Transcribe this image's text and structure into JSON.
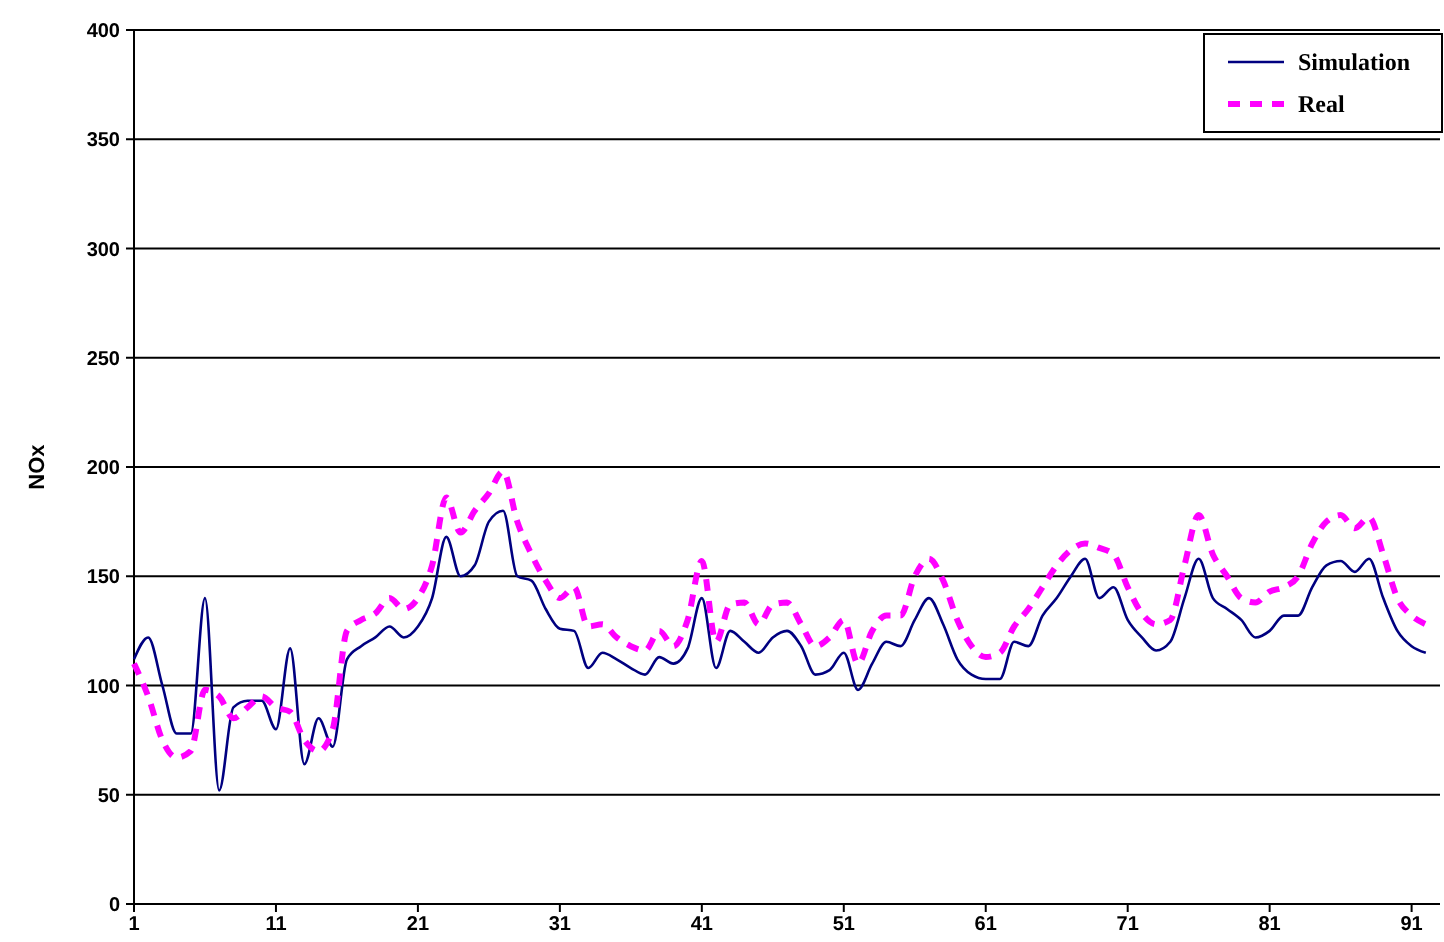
{
  "chart_data": {
    "type": "line",
    "ylabel": "NOx",
    "x": [
      1,
      2,
      3,
      4,
      5,
      6,
      7,
      8,
      9,
      10,
      11,
      12,
      13,
      14,
      15,
      16,
      17,
      18,
      19,
      20,
      21,
      22,
      23,
      24,
      25,
      26,
      27,
      28,
      29,
      30,
      31,
      32,
      33,
      34,
      35,
      36,
      37,
      38,
      39,
      40,
      41,
      42,
      43,
      44,
      45,
      46,
      47,
      48,
      49,
      50,
      51,
      52,
      53,
      54,
      55,
      56,
      57,
      58,
      59,
      60,
      61,
      62,
      63,
      64,
      65,
      66,
      67,
      68,
      69,
      70,
      71,
      72,
      73,
      74,
      75,
      76,
      77,
      78,
      79,
      80,
      81,
      82,
      83,
      84,
      85,
      86,
      87,
      88,
      89,
      90,
      91,
      92
    ],
    "series": [
      {
        "name": "Simulation",
        "color": "#000080",
        "line_style": "solid",
        "values": [
          112,
          122,
          100,
          78,
          78,
          140,
          52,
          90,
          93,
          93,
          80,
          117,
          64,
          85,
          72,
          112,
          118,
          122,
          127,
          122,
          127,
          140,
          168,
          150,
          155,
          175,
          180,
          150,
          148,
          135,
          126,
          125,
          108,
          115,
          112,
          108,
          105,
          113,
          110,
          117,
          140,
          108,
          125,
          120,
          115,
          122,
          125,
          118,
          105,
          107,
          115,
          98,
          110,
          120,
          118,
          130,
          140,
          128,
          112,
          105,
          103,
          103,
          120,
          118,
          132,
          140,
          150,
          158,
          140,
          145,
          130,
          122,
          116,
          120,
          140,
          158,
          140,
          135,
          130,
          122,
          125,
          132,
          132,
          145,
          155,
          157,
          152,
          158,
          140,
          125,
          118,
          115
        ]
      },
      {
        "name": "Real",
        "color": "#ff00ff",
        "line_style": "dashed",
        "values": [
          110,
          95,
          75,
          67,
          70,
          98,
          95,
          85,
          90,
          95,
          90,
          88,
          75,
          70,
          80,
          125,
          130,
          133,
          140,
          135,
          140,
          155,
          186,
          170,
          180,
          188,
          198,
          175,
          160,
          148,
          140,
          145,
          127,
          128,
          122,
          118,
          116,
          125,
          118,
          130,
          157,
          120,
          137,
          138,
          128,
          137,
          138,
          128,
          118,
          122,
          130,
          110,
          125,
          132,
          132,
          150,
          158,
          148,
          130,
          118,
          113,
          115,
          127,
          135,
          145,
          155,
          162,
          165,
          163,
          160,
          145,
          133,
          128,
          130,
          155,
          178,
          160,
          150,
          140,
          138,
          143,
          145,
          150,
          165,
          175,
          178,
          172,
          177,
          160,
          140,
          132,
          128
        ]
      }
    ],
    "xlim": [
      1,
      93
    ],
    "xticks": [
      1,
      11,
      21,
      31,
      41,
      51,
      61,
      71,
      81,
      91
    ],
    "ylim": [
      0,
      400
    ],
    "yticks": [
      0,
      50,
      100,
      150,
      200,
      250,
      300,
      350,
      400
    ],
    "grid": "y",
    "legend": "top right",
    "marker": "none"
  }
}
